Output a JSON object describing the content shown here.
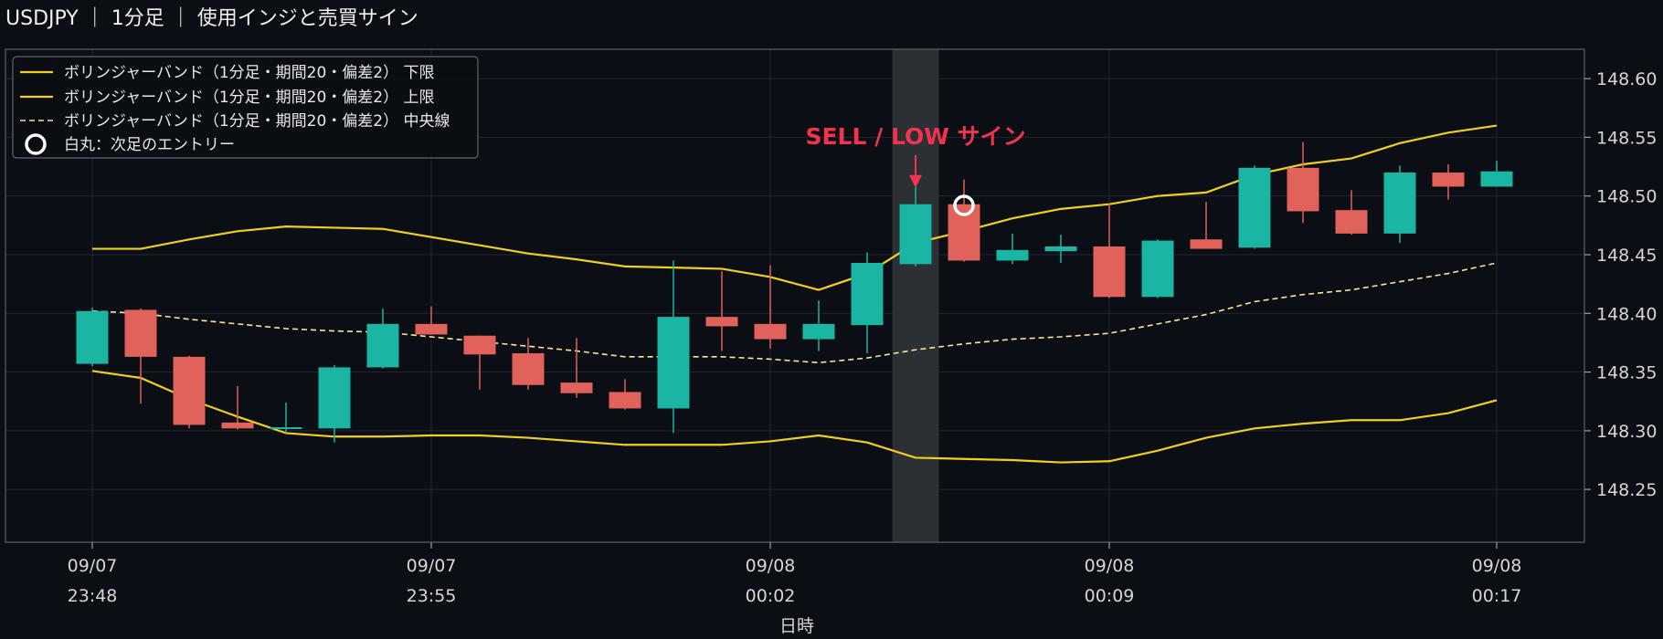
{
  "header": {
    "title": "USDJPY ｜ 1分足 ｜ 使用インジと売買サイン"
  },
  "colors": {
    "background": "#0b0e14",
    "up": "#1ab5a3",
    "down": "#e0625a",
    "band": "#f2cf1f",
    "middle": "#f4ea9a",
    "signal": "#f0334e",
    "grid": "#23272f",
    "highlight": "#2c2f34"
  },
  "chart_data": {
    "type": "candlestick",
    "xlabel": "日時",
    "ylim": [
      148.205,
      148.625
    ],
    "grid": true,
    "legend_position": "top-left",
    "y_ticks": [
      148.25,
      148.3,
      148.35,
      148.4,
      148.45,
      148.5,
      148.55,
      148.6
    ],
    "x_ticks": [
      {
        "index": 0,
        "date": "09/07",
        "time": "23:48"
      },
      {
        "index": 7,
        "date": "09/07",
        "time": "23:55"
      },
      {
        "index": 14,
        "date": "09/08",
        "time": "00:02"
      },
      {
        "index": 21,
        "date": "09/08",
        "time": "00:09"
      },
      {
        "index": 29,
        "date": "09/08",
        "time": "00:17"
      }
    ],
    "candles": [
      {
        "o": 148.357,
        "h": 148.405,
        "l": 148.355,
        "c": 148.402
      },
      {
        "o": 148.403,
        "h": 148.404,
        "l": 148.323,
        "c": 148.363
      },
      {
        "o": 148.363,
        "h": 148.364,
        "l": 148.302,
        "c": 148.305
      },
      {
        "o": 148.307,
        "h": 148.338,
        "l": 148.301,
        "c": 148.302
      },
      {
        "o": 148.302,
        "h": 148.324,
        "l": 148.298,
        "c": 148.303
      },
      {
        "o": 148.302,
        "h": 148.356,
        "l": 148.29,
        "c": 148.354
      },
      {
        "o": 148.354,
        "h": 148.404,
        "l": 148.353,
        "c": 148.391
      },
      {
        "o": 148.391,
        "h": 148.406,
        "l": 148.382,
        "c": 148.382
      },
      {
        "o": 148.381,
        "h": 148.381,
        "l": 148.335,
        "c": 148.365
      },
      {
        "o": 148.366,
        "h": 148.379,
        "l": 148.335,
        "c": 148.339
      },
      {
        "o": 148.341,
        "h": 148.379,
        "l": 148.328,
        "c": 148.332
      },
      {
        "o": 148.333,
        "h": 148.344,
        "l": 148.318,
        "c": 148.319
      },
      {
        "o": 148.319,
        "h": 148.445,
        "l": 148.298,
        "c": 148.397
      },
      {
        "o": 148.397,
        "h": 148.436,
        "l": 148.368,
        "c": 148.389
      },
      {
        "o": 148.391,
        "h": 148.441,
        "l": 148.37,
        "c": 148.378
      },
      {
        "o": 148.378,
        "h": 148.411,
        "l": 148.368,
        "c": 148.391
      },
      {
        "o": 148.39,
        "h": 148.452,
        "l": 148.366,
        "c": 148.443
      },
      {
        "o": 148.442,
        "h": 148.512,
        "l": 148.44,
        "c": 148.493
      },
      {
        "o": 148.493,
        "h": 148.514,
        "l": 148.444,
        "c": 148.445
      },
      {
        "o": 148.445,
        "h": 148.468,
        "l": 148.442,
        "c": 148.454
      },
      {
        "o": 148.453,
        "h": 148.467,
        "l": 148.443,
        "c": 148.457
      },
      {
        "o": 148.457,
        "h": 148.494,
        "l": 148.413,
        "c": 148.414
      },
      {
        "o": 148.414,
        "h": 148.463,
        "l": 148.413,
        "c": 148.462
      },
      {
        "o": 148.463,
        "h": 148.495,
        "l": 148.455,
        "c": 148.455
      },
      {
        "o": 148.456,
        "h": 148.526,
        "l": 148.455,
        "c": 148.524
      },
      {
        "o": 148.524,
        "h": 148.546,
        "l": 148.477,
        "c": 148.487
      },
      {
        "o": 148.488,
        "h": 148.505,
        "l": 148.467,
        "c": 148.468
      },
      {
        "o": 148.468,
        "h": 148.526,
        "l": 148.46,
        "c": 148.52
      },
      {
        "o": 148.52,
        "h": 148.527,
        "l": 148.497,
        "c": 148.508
      },
      {
        "o": 148.508,
        "h": 148.53,
        "l": 148.508,
        "c": 148.521
      }
    ],
    "series": [
      {
        "name": "ボリンジャーバンド（1分足・期間20・偏差2） 下限",
        "style": "solid",
        "values": [
          148.351,
          148.345,
          148.327,
          148.312,
          148.298,
          148.295,
          148.295,
          148.296,
          148.296,
          148.294,
          148.291,
          148.288,
          148.288,
          148.288,
          148.291,
          148.296,
          148.29,
          148.277,
          148.276,
          148.275,
          148.273,
          148.274,
          148.283,
          148.294,
          148.302,
          148.306,
          148.309,
          148.309,
          148.315,
          148.326
        ]
      },
      {
        "name": "ボリンジャーバンド（1分足・期間20・偏差2） 上限",
        "style": "solid",
        "values": [
          148.455,
          148.455,
          148.463,
          148.47,
          148.474,
          148.473,
          148.472,
          148.465,
          148.458,
          148.451,
          148.446,
          148.44,
          148.439,
          148.438,
          148.431,
          148.42,
          148.434,
          148.46,
          148.47,
          148.481,
          148.489,
          148.493,
          148.5,
          148.503,
          148.518,
          148.527,
          148.532,
          148.545,
          148.554,
          148.56
        ]
      },
      {
        "name": "ボリンジャーバンド（1分足・期間20・偏差2） 中央線",
        "style": "dashed",
        "values": [
          148.402,
          148.4,
          148.395,
          148.391,
          148.387,
          148.385,
          148.384,
          148.38,
          148.376,
          148.372,
          148.368,
          148.363,
          148.363,
          148.363,
          148.361,
          148.358,
          148.362,
          148.369,
          148.374,
          148.378,
          148.38,
          148.383,
          148.391,
          148.399,
          148.41,
          148.416,
          148.42,
          148.427,
          148.434,
          148.443
        ]
      }
    ],
    "legend_marker_label": "白丸：次足のエントリー",
    "highlight_index": 17,
    "annotation": {
      "text": "SELL / LOW サイン",
      "arrow_index": 17,
      "arrow_value": 148.507
    },
    "entry_marker": {
      "index": 18,
      "value": 148.492
    }
  }
}
